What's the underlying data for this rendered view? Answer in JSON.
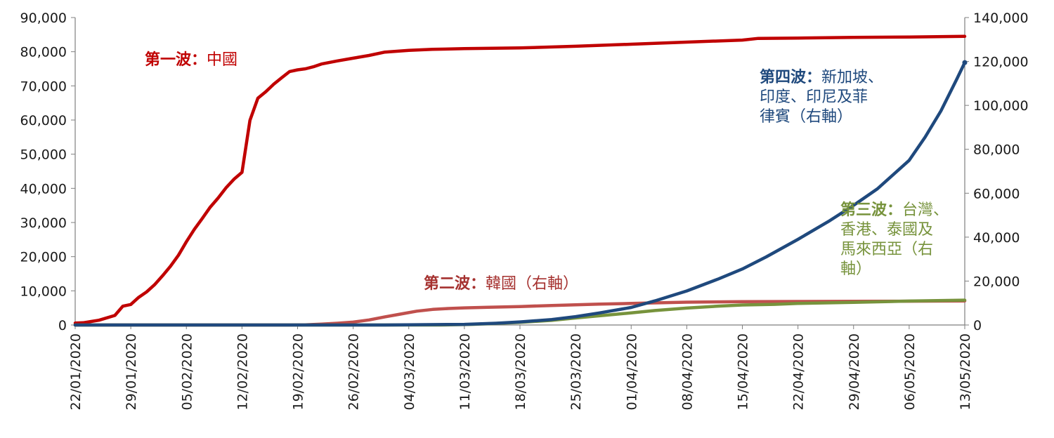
{
  "chart_data": {
    "type": "line",
    "title": "",
    "xlabel": "",
    "ylabel": "",
    "x_start": "22/01/2020",
    "x_end": "13/05/2020",
    "x_tick_labels": [
      "22/01/2020",
      "29/01/2020",
      "05/02/2020",
      "12/02/2020",
      "19/02/2020",
      "26/02/2020",
      "04/03/2020",
      "11/03/2020",
      "18/03/2020",
      "25/03/2020",
      "01/04/2020",
      "08/04/2020",
      "15/04/2020",
      "22/04/2020",
      "29/04/2020",
      "06/05/2020",
      "13/05/2020"
    ],
    "y_left": {
      "range": [
        0,
        90000
      ],
      "ticks": [
        "0",
        "10,000",
        "20,000",
        "30,000",
        "40,000",
        "50,000",
        "60,000",
        "70,000",
        "80,000",
        "90,000"
      ]
    },
    "y_right": {
      "range": [
        0,
        140000
      ],
      "ticks": [
        "0",
        "20,000",
        "40,000",
        "60,000",
        "80,000",
        "100,000",
        "120,000",
        "140,000"
      ]
    },
    "grid": false,
    "legend": "none",
    "series": [
      {
        "axis": "left",
        "color": "#c00000",
        "points": [
          [
            "22/01/2020",
            550
          ],
          [
            "23/01/2020",
            650
          ],
          [
            "25/01/2020",
            1400
          ],
          [
            "27/01/2020",
            2800
          ],
          [
            "28/01/2020",
            5500
          ],
          [
            "29/01/2020",
            6000
          ],
          [
            "30/01/2020",
            8100
          ],
          [
            "31/01/2020",
            9700
          ],
          [
            "01/02/2020",
            11800
          ],
          [
            "02/02/2020",
            14400
          ],
          [
            "03/02/2020",
            17200
          ],
          [
            "04/02/2020",
            20400
          ],
          [
            "05/02/2020",
            24400
          ],
          [
            "06/02/2020",
            28000
          ],
          [
            "07/02/2020",
            31200
          ],
          [
            "08/02/2020",
            34500
          ],
          [
            "09/02/2020",
            37200
          ],
          [
            "10/02/2020",
            40200
          ],
          [
            "11/02/2020",
            42700
          ],
          [
            "12/02/2020",
            44700
          ],
          [
            "13/02/2020",
            59900
          ],
          [
            "14/02/2020",
            66400
          ],
          [
            "15/02/2020",
            68300
          ],
          [
            "16/02/2020",
            70500
          ],
          [
            "17/02/2020",
            72400
          ],
          [
            "18/02/2020",
            74200
          ],
          [
            "19/02/2020",
            74700
          ],
          [
            "20/02/2020",
            75000
          ],
          [
            "21/02/2020",
            75600
          ],
          [
            "22/02/2020",
            76400
          ],
          [
            "24/02/2020",
            77300
          ],
          [
            "26/02/2020",
            78100
          ],
          [
            "28/02/2020",
            78900
          ],
          [
            "01/03/2020",
            79900
          ],
          [
            "04/03/2020",
            80400
          ],
          [
            "07/03/2020",
            80700
          ],
          [
            "11/03/2020",
            80900
          ],
          [
            "18/03/2020",
            81100
          ],
          [
            "25/03/2020",
            81600
          ],
          [
            "01/04/2020",
            82200
          ],
          [
            "08/04/2020",
            82800
          ],
          [
            "15/04/2020",
            83400
          ],
          [
            "17/04/2020",
            83900
          ],
          [
            "22/04/2020",
            84000
          ],
          [
            "29/04/2020",
            84200
          ],
          [
            "06/05/2020",
            84300
          ],
          [
            "13/05/2020",
            84500
          ]
        ]
      },
      {
        "axis": "right",
        "color": "#c0504d",
        "points": [
          [
            "22/01/2020",
            0
          ],
          [
            "18/02/2020",
            0
          ],
          [
            "20/02/2020",
            100
          ],
          [
            "22/02/2020",
            400
          ],
          [
            "24/02/2020",
            800
          ],
          [
            "26/02/2020",
            1300
          ],
          [
            "28/02/2020",
            2300
          ],
          [
            "01/03/2020",
            3700
          ],
          [
            "03/03/2020",
            5000
          ],
          [
            "05/03/2020",
            6300
          ],
          [
            "07/03/2020",
            7100
          ],
          [
            "09/03/2020",
            7500
          ],
          [
            "11/03/2020",
            7800
          ],
          [
            "14/03/2020",
            8100
          ],
          [
            "18/03/2020",
            8400
          ],
          [
            "22/03/2020",
            8900
          ],
          [
            "25/03/2020",
            9200
          ],
          [
            "28/03/2020",
            9500
          ],
          [
            "01/04/2020",
            9800
          ],
          [
            "08/04/2020",
            10400
          ],
          [
            "15/04/2020",
            10600
          ],
          [
            "22/04/2020",
            10700
          ],
          [
            "29/04/2020",
            10800
          ],
          [
            "06/05/2020",
            10850
          ],
          [
            "13/05/2020",
            10950
          ]
        ]
      },
      {
        "axis": "right",
        "color": "#77933c",
        "points": [
          [
            "22/01/2020",
            0
          ],
          [
            "08/03/2020",
            0
          ],
          [
            "12/03/2020",
            300
          ],
          [
            "15/03/2020",
            700
          ],
          [
            "18/03/2020",
            1200
          ],
          [
            "22/03/2020",
            2100
          ],
          [
            "25/03/2020",
            3200
          ],
          [
            "28/03/2020",
            4200
          ],
          [
            "01/04/2020",
            5500
          ],
          [
            "04/04/2020",
            6600
          ],
          [
            "08/04/2020",
            7700
          ],
          [
            "12/04/2020",
            8600
          ],
          [
            "15/04/2020",
            9100
          ],
          [
            "19/04/2020",
            9400
          ],
          [
            "22/04/2020",
            9800
          ],
          [
            "29/04/2020",
            10300
          ],
          [
            "06/05/2020",
            10900
          ],
          [
            "13/05/2020",
            11300
          ]
        ]
      },
      {
        "axis": "right",
        "color": "#1f497d",
        "points": [
          [
            "22/01/2020",
            0
          ],
          [
            "01/03/2020",
            0
          ],
          [
            "11/03/2020",
            300
          ],
          [
            "15/03/2020",
            800
          ],
          [
            "18/03/2020",
            1400
          ],
          [
            "22/03/2020",
            2500
          ],
          [
            "25/03/2020",
            3800
          ],
          [
            "28/03/2020",
            5500
          ],
          [
            "01/04/2020",
            8000
          ],
          [
            "04/04/2020",
            11000
          ],
          [
            "08/04/2020",
            15500
          ],
          [
            "12/04/2020",
            21000
          ],
          [
            "15/04/2020",
            25500
          ],
          [
            "18/04/2020",
            31000
          ],
          [
            "22/04/2020",
            39000
          ],
          [
            "26/04/2020",
            47500
          ],
          [
            "29/04/2020",
            54500
          ],
          [
            "02/05/2020",
            62000
          ],
          [
            "06/05/2020",
            75000
          ],
          [
            "08/05/2020",
            85500
          ],
          [
            "10/05/2020",
            97500
          ],
          [
            "12/05/2020",
            112000
          ],
          [
            "13/05/2020",
            119500
          ]
        ]
      }
    ],
    "annotations": [
      {
        "bold": "第一波：",
        "lines": [
          "中國"
        ],
        "color": "#c00000"
      },
      {
        "bold": "第二波：",
        "lines": [
          "韓國（右軸）"
        ],
        "color": "#a5312f"
      },
      {
        "bold": "第三波：",
        "lines": [
          "台灣、",
          "香港、泰國及",
          "馬來西亞（右",
          "軸）"
        ],
        "color": "#77933c"
      },
      {
        "bold": "第四波：",
        "lines": [
          "新加坡、",
          "印度、印尼及菲",
          "律賓（右軸）"
        ],
        "color": "#1f497d"
      }
    ]
  }
}
